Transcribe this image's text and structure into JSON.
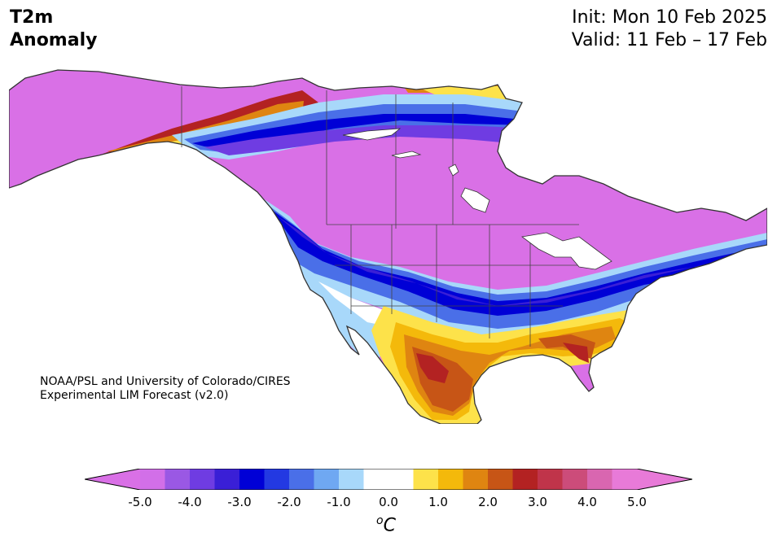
{
  "title": {
    "left_line1": "T2m",
    "left_line2": "Anomaly",
    "init": "Init: Mon 10 Feb 2025",
    "valid": "Valid: 11 Feb – 17 Feb"
  },
  "credit": {
    "line1": "NOAA/PSL and University of Colorado/CIRES",
    "line2": "Experimental LIM Forecast (v2.0)"
  },
  "colorbar": {
    "tick_labels": [
      "-5.0",
      "-4.0",
      "-3.0",
      "-2.0",
      "-1.0",
      "0.0",
      "1.0",
      "2.0",
      "3.0",
      "4.0",
      "5.0"
    ],
    "unit_superscript": "o",
    "unit_letter": "C",
    "levels": [
      -5.0,
      -4.5,
      -4.0,
      -3.5,
      -3.0,
      -2.5,
      -2.0,
      -1.5,
      -1.0,
      -0.5,
      0.5,
      1.0,
      1.5,
      2.0,
      2.5,
      3.0,
      3.5,
      4.0,
      4.5,
      5.0
    ],
    "colors": [
      "#d26fe8",
      "#9a58e4",
      "#6f3ce2",
      "#3a1fd6",
      "#0000d6",
      "#2339e2",
      "#4a6fe8",
      "#6fa8f2",
      "#a8d8fa",
      "#ffffff",
      "#fde24a",
      "#f4b90b",
      "#df8511",
      "#c75516",
      "#b32222",
      "#c0344a",
      "#cc4c7a",
      "#d966b0",
      "#e87ad8"
    ],
    "under_color": "#d970e6",
    "over_color": "#e87ad8"
  },
  "map": {
    "ocean_color": "#ffffff",
    "border_color": "#333333"
  }
}
